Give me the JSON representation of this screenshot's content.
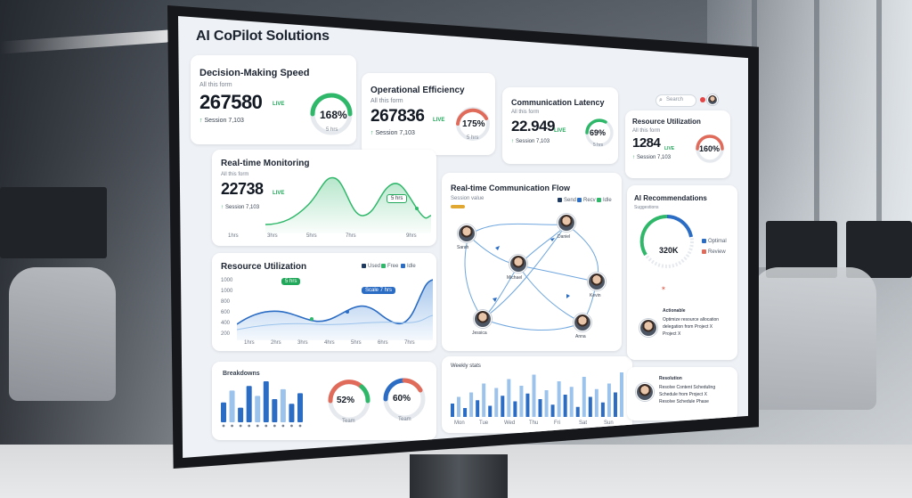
{
  "app": {
    "title": "AI CoPilot Solutions"
  },
  "header": {
    "search_placeholder": "Search"
  },
  "kpis": [
    {
      "title": "Decision-Making Speed",
      "subtitle": "All this form",
      "value": "267580",
      "live": "LIVE",
      "note": "Session 7,103",
      "gauge_value": "168%",
      "gauge_sub": "5 hrs",
      "gauge_color": "#2fb86a"
    },
    {
      "title": "Operational Efficiency",
      "subtitle": "All this form",
      "value": "267836",
      "live": "LIVE",
      "note": "Session 7,103",
      "gauge_value": "175%",
      "gauge_sub": "5 hrs",
      "gauge_color": "#e06b5a"
    },
    {
      "title": "Communication Latency",
      "subtitle": "All this form",
      "value": "22.949",
      "live": "LIVE",
      "note": "Session 7,103",
      "gauge_value": "69%",
      "gauge_sub": "5 hrs",
      "gauge_color": "#2fb86a"
    },
    {
      "title": "Resource Utilization",
      "subtitle": "All this form",
      "value": "1284",
      "live": "LIVE",
      "note": "Session 7,103",
      "gauge_value": "160%",
      "gauge_sub": "",
      "gauge_color": "#e06b5a"
    }
  ],
  "realtime_card": {
    "title": "Real-time Monitoring",
    "subtitle": "All this form",
    "value": "22738",
    "live": "LIVE",
    "note": "Session 7,103",
    "tag": "5 hrs",
    "ticks": [
      "1hrs",
      "3hrs",
      "5hrs",
      "7hrs",
      "9hrs"
    ]
  },
  "resource_card": {
    "title": "Resource Utilization",
    "legend": [
      "Used",
      "Free",
      "Idle"
    ],
    "tag_green": "5 hrs",
    "tag_blue": "Scale 7 hrs",
    "yticks": [
      "1000",
      "1000",
      "800",
      "600",
      "400",
      "200"
    ],
    "xticks": [
      "1hrs",
      "2hrs",
      "3hrs",
      "4hrs",
      "5hrs",
      "6hrs",
      "7hrs"
    ]
  },
  "bottom_left_card": {
    "title": "Breakdowns",
    "gauge1_value": "52%",
    "gauge1_sub": "Team",
    "gauge2_value": "60%",
    "gauge2_sub": "Team",
    "bar_values": [
      30,
      48,
      22,
      55,
      40,
      62,
      35,
      50,
      28,
      44
    ]
  },
  "comm_flow": {
    "title": "Real-time Communication Flow",
    "subtitle": "Session value",
    "legend": [
      "Send",
      "Recv",
      "Idle"
    ],
    "nodes": [
      {
        "label": "Sarah",
        "name": "node-sarah"
      },
      {
        "label": "Daniel",
        "name": "node-daniel"
      },
      {
        "label": "Michael",
        "name": "node-michael"
      },
      {
        "label": "Kevin",
        "name": "node-kevin"
      },
      {
        "label": "Jessica",
        "name": "node-jessica"
      },
      {
        "label": "Anna",
        "name": "node-anna"
      }
    ]
  },
  "activity_chart": {
    "title": "Weekly stats",
    "xticks": [
      "Mon",
      "Tue",
      "Wed",
      "Thu",
      "Fri",
      "Sat",
      "Sun"
    ],
    "values": [
      12,
      18,
      8,
      22,
      15,
      30,
      10,
      26,
      19,
      34,
      14,
      28,
      21,
      38,
      16,
      24,
      11,
      32,
      20,
      27,
      9,
      36,
      18,
      25,
      13,
      30,
      22,
      40
    ]
  },
  "ai_reco": {
    "title": "AI Recommendations",
    "subtitle": "Suggestions",
    "gauge_value": "320K",
    "legend": [
      "Optimal",
      "Review"
    ],
    "rec_header": "Actionable",
    "rec_lines": [
      "Optimize resource allocation",
      "delegation from Project X",
      "Project X"
    ],
    "rec2_header": "Resolution",
    "rec2_lines": [
      "Resolve Content Scheduling",
      "Schedule from Project X",
      "Resolve Schedule Phase"
    ]
  }
}
